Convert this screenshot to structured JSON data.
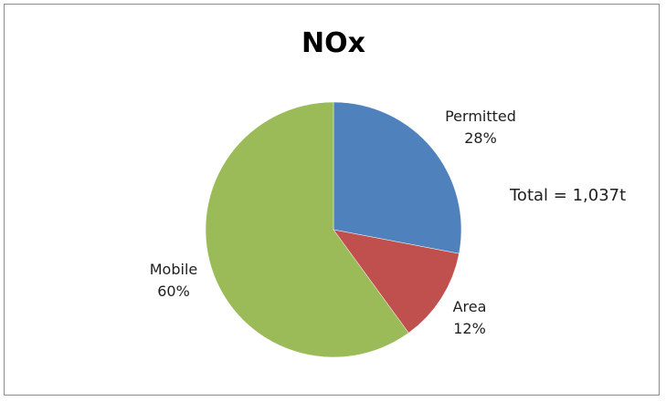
{
  "chart_data": {
    "type": "pie",
    "title": "NOx",
    "slices": [
      {
        "name": "Permitted",
        "value": 28,
        "label": "28%",
        "color": "#4f81bd"
      },
      {
        "name": "Area",
        "value": 12,
        "label": "12%",
        "color": "#c0504d"
      },
      {
        "name": "Mobile",
        "value": 60,
        "label": "60%",
        "color": "#9bbb59"
      }
    ],
    "annotation": "Total = 1,037t",
    "legend": "none"
  }
}
